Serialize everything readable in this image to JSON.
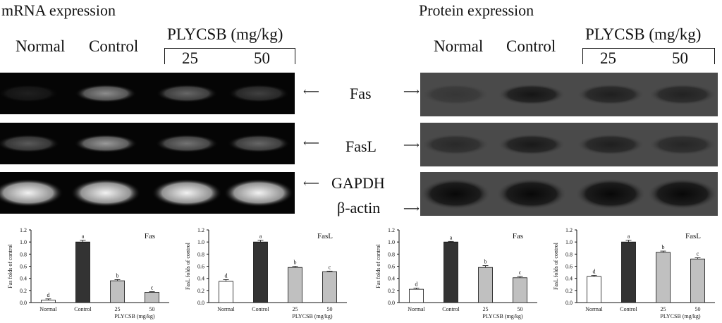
{
  "left": {
    "title": "mRNA expression",
    "lanes": [
      "Normal",
      "Control"
    ],
    "dose_group": "PLYCSB (mg/kg)",
    "doses": [
      "25",
      "50"
    ],
    "genes": [
      "Fas",
      "FasL",
      "GAPDH"
    ],
    "band_intensity": {
      "Fas": [
        0.12,
        0.55,
        0.4,
        0.25
      ],
      "FasL": [
        0.35,
        0.6,
        0.45,
        0.4
      ],
      "GAPDH": [
        0.95,
        0.95,
        0.95,
        0.95
      ]
    }
  },
  "right": {
    "title": "Protein expression",
    "lanes": [
      "Normal",
      "Control"
    ],
    "dose_group": "PLYCSB (mg/kg)",
    "doses": [
      "25",
      "50"
    ],
    "genes": [
      "Fas",
      "FasL",
      "β-actin"
    ],
    "band_intensity": {
      "Fas": [
        0.25,
        0.75,
        0.6,
        0.55
      ],
      "FasL": [
        0.45,
        0.7,
        0.6,
        0.5
      ],
      "β-actin": [
        0.95,
        0.95,
        0.95,
        0.95
      ]
    }
  },
  "chart_data": [
    {
      "type": "bar",
      "title": "Fas",
      "ylabel": "Fas folds of control",
      "xlabel": "PLYCSB (mg/kg)",
      "categories": [
        "Normal",
        "Control",
        "25",
        "50"
      ],
      "values": [
        0.04,
        1.0,
        0.36,
        0.17
      ],
      "errors": [
        0.02,
        0.03,
        0.02,
        0.01
      ],
      "letters": [
        "d",
        "a",
        "b",
        "c"
      ],
      "ylim": [
        0,
        1.2
      ],
      "yticks": [
        "0.0",
        "0.2",
        "0.4",
        "0.6",
        "0.8",
        "1.0",
        "1.2"
      ],
      "colors": [
        "#ffffff",
        "#333333",
        "#c0c0c0",
        "#c0c0c0"
      ]
    },
    {
      "type": "bar",
      "title": "FasL",
      "ylabel": "FasL folds of control",
      "xlabel": "PLYCSB (mg/kg)",
      "categories": [
        "Normal",
        "Control",
        "25",
        "50"
      ],
      "values": [
        0.35,
        1.0,
        0.58,
        0.51
      ],
      "errors": [
        0.03,
        0.03,
        0.02,
        0.01
      ],
      "letters": [
        "d",
        "a",
        "b",
        "c"
      ],
      "ylim": [
        0,
        1.2
      ],
      "yticks": [
        "0.0",
        "0.2",
        "0.4",
        "0.6",
        "0.8",
        "1.0",
        "1.2"
      ],
      "colors": [
        "#ffffff",
        "#333333",
        "#c0c0c0",
        "#c0c0c0"
      ]
    },
    {
      "type": "bar",
      "title": "Fas",
      "ylabel": "Fas folds of control",
      "xlabel": "PLYCSB (mg/kg)",
      "categories": [
        "Normal",
        "Control",
        "25",
        "50"
      ],
      "values": [
        0.22,
        1.0,
        0.58,
        0.41
      ],
      "errors": [
        0.02,
        0.01,
        0.03,
        0.02
      ],
      "letters": [
        "d",
        "a",
        "b",
        "c"
      ],
      "ylim": [
        0,
        1.2
      ],
      "yticks": [
        "0.0",
        "0.2",
        "0.4",
        "0.6",
        "0.8",
        "1.0",
        "1.2"
      ],
      "colors": [
        "#ffffff",
        "#333333",
        "#c0c0c0",
        "#c0c0c0"
      ]
    },
    {
      "type": "bar",
      "title": "FasL",
      "ylabel": "FasL folds of control",
      "xlabel": "PLYCSB (mg/kg)",
      "categories": [
        "Normal",
        "Control",
        "25",
        "50"
      ],
      "values": [
        0.43,
        1.0,
        0.83,
        0.72
      ],
      "errors": [
        0.02,
        0.03,
        0.02,
        0.02
      ],
      "letters": [
        "d",
        "a",
        "b",
        "c"
      ],
      "ylim": [
        0,
        1.2
      ],
      "yticks": [
        "0.0",
        "0.2",
        "0.4",
        "0.6",
        "0.8",
        "1.0",
        "1.2"
      ],
      "colors": [
        "#ffffff",
        "#333333",
        "#c0c0c0",
        "#c0c0c0"
      ]
    }
  ]
}
